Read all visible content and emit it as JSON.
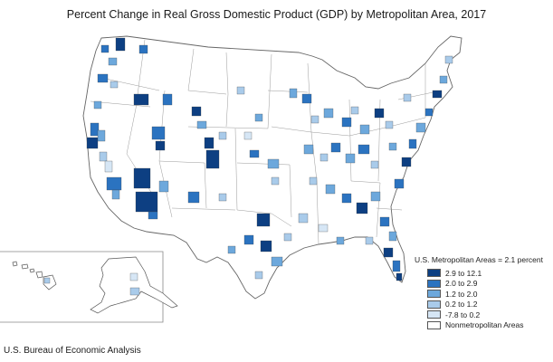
{
  "title": "Percent Change in Real Gross Domestic Product (GDP) by Metropolitan Area, 2017",
  "legend": {
    "header": "U.S. Metropolitan Areas = 2.1 percent",
    "items": [
      {
        "label": "2.9 to 12.1",
        "color": "#0d3f82"
      },
      {
        "label": "2.0 to 2.9",
        "color": "#2b73c0"
      },
      {
        "label": "1.2 to 2.0",
        "color": "#6da8dc"
      },
      {
        "label": "0.2 to 1.2",
        "color": "#a9cbea"
      },
      {
        "label": "-7.8 to 0.2",
        "color": "#d6e6f5"
      },
      {
        "label": "Nonmetropolitan Areas",
        "color": "#ffffff"
      }
    ]
  },
  "source": "U.S. Bureau of Economic Analysis"
}
